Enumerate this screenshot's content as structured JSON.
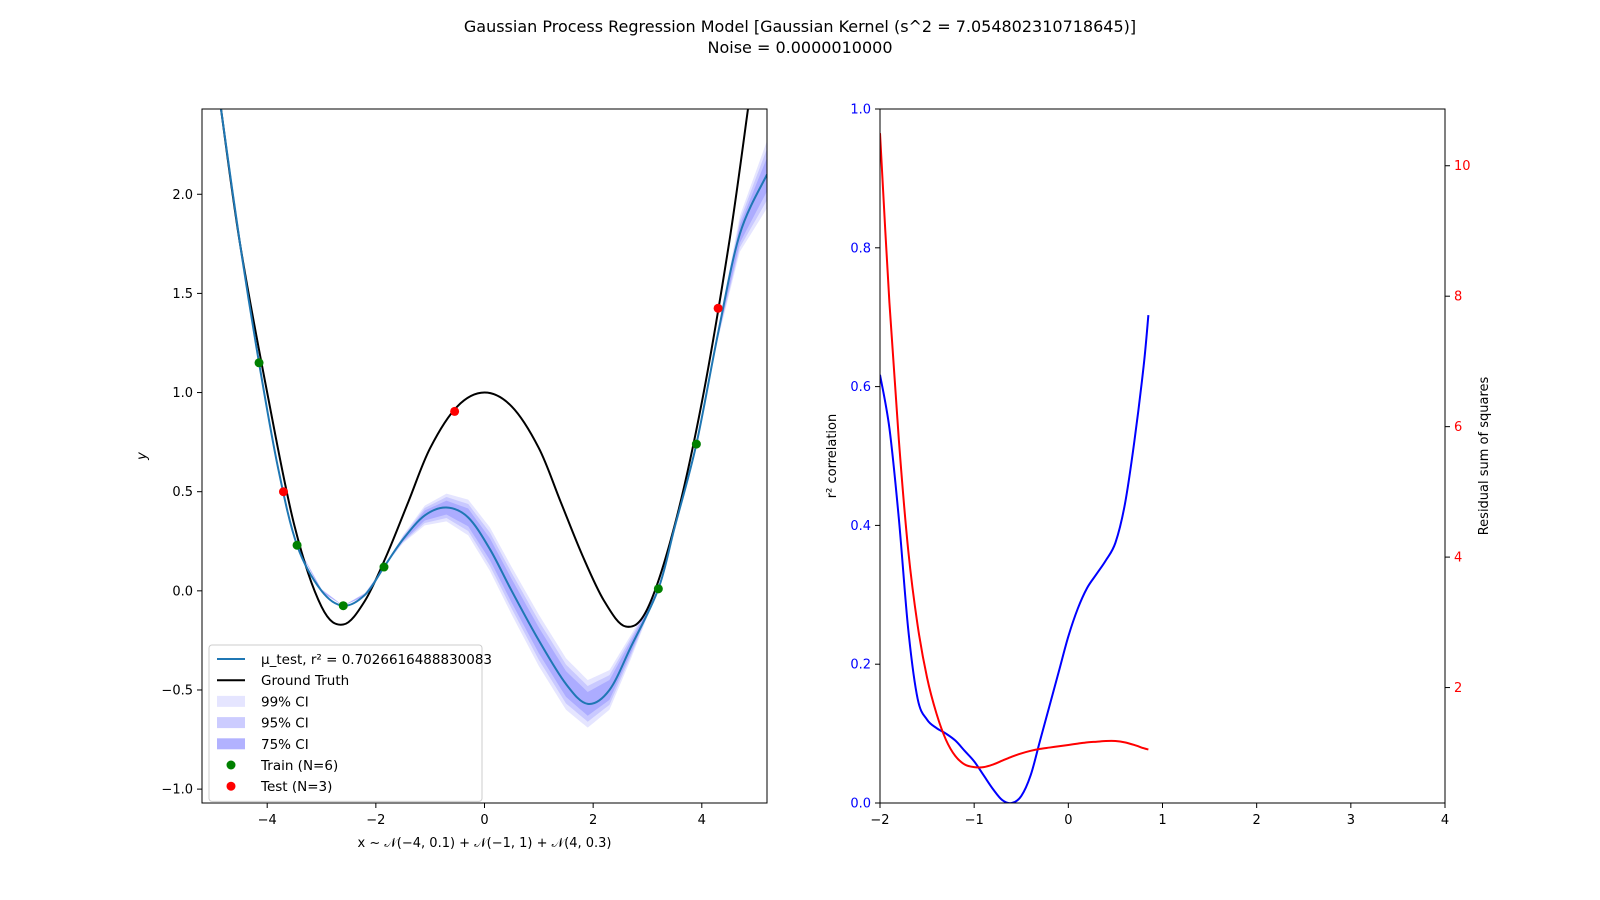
{
  "figure": {
    "title_line1": "Gaussian Process Regression Model [Gaussian Kernel (s^2 = 7.054802310718645)]",
    "title_line2": "Noise = 0.0000010000"
  },
  "chart_data": [
    {
      "type": "line",
      "xlabel": "x ~ 𝒩(−4, 0.1) + 𝒩(−1, 1) + 𝒩(4, 0.3)",
      "ylabel": "y",
      "xlim": [
        -5.2,
        5.2
      ],
      "ylim": [
        -1.07,
        2.43
      ],
      "xticks": [
        -4,
        -2,
        0,
        2,
        4
      ],
      "xtick_labels": [
        "−4",
        "−2",
        "0",
        "2",
        "4"
      ],
      "yticks": [
        -1.0,
        -0.5,
        0.0,
        0.5,
        1.0,
        1.5,
        2.0
      ],
      "ytick_labels": [
        "−1.0",
        "−0.5",
        "0.0",
        "0.5",
        "1.0",
        "1.5",
        "2.0"
      ],
      "legend_position": "lower-left",
      "legend": [
        {
          "kind": "line",
          "color": "#1f77b4",
          "label": "μ_test, r² = 0.7026616488830083"
        },
        {
          "kind": "line",
          "color": "#000000",
          "label": "Ground Truth"
        },
        {
          "kind": "patch",
          "color": "#0000ff",
          "opacity": 0.1,
          "label": "99% CI"
        },
        {
          "kind": "patch",
          "color": "#0000ff",
          "opacity": 0.2,
          "label": "95% CI"
        },
        {
          "kind": "patch",
          "color": "#0000ff",
          "opacity": 0.3,
          "label": "75% CI"
        },
        {
          "kind": "dot",
          "color": "#008000",
          "label": "Train (N=6)"
        },
        {
          "kind": "dot",
          "color": "#ff0000",
          "label": "Test (N=3)"
        }
      ],
      "ground_truth": {
        "color": "#000000",
        "points": [
          [
            -4.85,
            2.43
          ],
          [
            -4.5,
            1.75
          ],
          [
            -4.0,
            1.0
          ],
          [
            -3.5,
            0.33
          ],
          [
            -3.0,
            -0.08
          ],
          [
            -2.6,
            -0.17
          ],
          [
            -2.2,
            -0.05
          ],
          [
            -1.8,
            0.18
          ],
          [
            -1.4,
            0.45
          ],
          [
            -1.0,
            0.72
          ],
          [
            -0.5,
            0.93
          ],
          [
            0.0,
            1.0
          ],
          [
            0.5,
            0.93
          ],
          [
            1.0,
            0.72
          ],
          [
            1.4,
            0.45
          ],
          [
            1.8,
            0.18
          ],
          [
            2.2,
            -0.05
          ],
          [
            2.6,
            -0.18
          ],
          [
            3.0,
            -0.09
          ],
          [
            3.5,
            0.33
          ],
          [
            4.0,
            0.95
          ],
          [
            4.5,
            1.75
          ],
          [
            4.85,
            2.43
          ]
        ]
      },
      "mean": {
        "color": "#1f77b4",
        "points": [
          [
            -4.85,
            2.43
          ],
          [
            -4.5,
            1.75
          ],
          [
            -4.15,
            1.15
          ],
          [
            -3.8,
            0.62
          ],
          [
            -3.45,
            0.23
          ],
          [
            -3.0,
            0.0
          ],
          [
            -2.6,
            -0.075
          ],
          [
            -2.2,
            -0.02
          ],
          [
            -1.85,
            0.12
          ],
          [
            -1.5,
            0.26
          ],
          [
            -1.1,
            0.38
          ],
          [
            -0.7,
            0.42
          ],
          [
            -0.3,
            0.37
          ],
          [
            0.1,
            0.21
          ],
          [
            0.5,
            0.0
          ],
          [
            1.0,
            -0.25
          ],
          [
            1.5,
            -0.47
          ],
          [
            1.9,
            -0.57
          ],
          [
            2.3,
            -0.5
          ],
          [
            2.7,
            -0.28
          ],
          [
            3.2,
            0.01
          ],
          [
            3.5,
            0.32
          ],
          [
            3.9,
            0.74
          ],
          [
            4.3,
            1.3
          ],
          [
            4.7,
            1.8
          ],
          [
            5.2,
            2.1
          ]
        ]
      },
      "ci_half_width": {
        "x": [
          -5.2,
          -3.8,
          -3.45,
          -3.0,
          -2.6,
          -2.2,
          -1.85,
          -1.5,
          -1.1,
          -0.7,
          -0.3,
          0.1,
          0.5,
          1.0,
          1.5,
          1.9,
          2.3,
          2.7,
          3.2,
          3.5,
          3.9,
          4.3,
          4.7,
          5.2
        ],
        "w99": [
          0.0,
          0.0,
          0.0,
          0.01,
          0.0,
          0.01,
          0.0,
          0.02,
          0.05,
          0.07,
          0.09,
          0.11,
          0.12,
          0.13,
          0.13,
          0.12,
          0.1,
          0.06,
          0.0,
          0.02,
          0.0,
          0.03,
          0.09,
          0.17
        ],
        "w95": [
          0.0,
          0.0,
          0.0,
          0.008,
          0.0,
          0.008,
          0.0,
          0.015,
          0.038,
          0.053,
          0.068,
          0.084,
          0.09,
          0.098,
          0.098,
          0.09,
          0.075,
          0.045,
          0.0,
          0.015,
          0.0,
          0.023,
          0.068,
          0.13
        ],
        "w75": [
          0.0,
          0.0,
          0.0,
          0.005,
          0.0,
          0.005,
          0.0,
          0.01,
          0.025,
          0.035,
          0.045,
          0.055,
          0.06,
          0.065,
          0.065,
          0.06,
          0.05,
          0.03,
          0.0,
          0.01,
          0.0,
          0.015,
          0.045,
          0.085
        ]
      },
      "train": {
        "color": "#008000",
        "points": [
          [
            -4.15,
            1.15
          ],
          [
            -3.45,
            0.23
          ],
          [
            -2.6,
            -0.075
          ],
          [
            -1.85,
            0.12
          ],
          [
            3.2,
            0.01
          ],
          [
            3.9,
            0.74
          ]
        ]
      },
      "test": {
        "color": "#ff0000",
        "points": [
          [
            -3.7,
            0.5
          ],
          [
            -0.55,
            0.905
          ],
          [
            4.3,
            1.425
          ]
        ]
      }
    },
    {
      "type": "line",
      "xlabel": "",
      "ylabel_left": "r² correlation",
      "ylabel_right": "Residual sum of squares",
      "xlim": [
        -2,
        4
      ],
      "ylim_left": [
        0,
        1
      ],
      "ylim_right": [
        0.23,
        10.87
      ],
      "xticks": [
        -2,
        -1,
        0,
        1,
        2,
        3,
        4
      ],
      "xtick_labels": [
        "−2",
        "−1",
        "0",
        "1",
        "2",
        "3",
        "4"
      ],
      "yticks_left": [
        0.0,
        0.2,
        0.4,
        0.6,
        0.8,
        1.0
      ],
      "ytick_labels_left": [
        "0.0",
        "0.2",
        "0.4",
        "0.6",
        "0.8",
        "1.0"
      ],
      "yticks_right": [
        2,
        4,
        6,
        8,
        10
      ],
      "ytick_labels_right": [
        "2",
        "4",
        "6",
        "8",
        "10"
      ],
      "series": [
        {
          "axis": "left",
          "color": "#0000ff",
          "points": [
            [
              -2.0,
              0.617
            ],
            [
              -1.9,
              0.54
            ],
            [
              -1.8,
              0.41
            ],
            [
              -1.7,
              0.25
            ],
            [
              -1.6,
              0.15
            ],
            [
              -1.5,
              0.12
            ],
            [
              -1.4,
              0.108
            ],
            [
              -1.3,
              0.1
            ],
            [
              -1.2,
              0.09
            ],
            [
              -1.1,
              0.075
            ],
            [
              -1.0,
              0.06
            ],
            [
              -0.9,
              0.04
            ],
            [
              -0.8,
              0.02
            ],
            [
              -0.7,
              0.004
            ],
            [
              -0.6,
              0.0
            ],
            [
              -0.5,
              0.01
            ],
            [
              -0.4,
              0.04
            ],
            [
              -0.3,
              0.09
            ],
            [
              -0.2,
              0.14
            ],
            [
              -0.1,
              0.19
            ],
            [
              0.0,
              0.24
            ],
            [
              0.1,
              0.28
            ],
            [
              0.2,
              0.31
            ],
            [
              0.3,
              0.33
            ],
            [
              0.4,
              0.35
            ],
            [
              0.5,
              0.375
            ],
            [
              0.6,
              0.43
            ],
            [
              0.7,
              0.52
            ],
            [
              0.8,
              0.63
            ],
            [
              0.85,
              0.703
            ]
          ]
        },
        {
          "axis": "right",
          "color": "#ff0000",
          "points": [
            [
              -2.0,
              10.5
            ],
            [
              -1.9,
              7.9
            ],
            [
              -1.8,
              5.8
            ],
            [
              -1.7,
              4.1
            ],
            [
              -1.6,
              2.95
            ],
            [
              -1.5,
              2.15
            ],
            [
              -1.4,
              1.6
            ],
            [
              -1.3,
              1.2
            ],
            [
              -1.2,
              0.95
            ],
            [
              -1.1,
              0.82
            ],
            [
              -1.0,
              0.78
            ],
            [
              -0.9,
              0.78
            ],
            [
              -0.8,
              0.82
            ],
            [
              -0.7,
              0.88
            ],
            [
              -0.6,
              0.94
            ],
            [
              -0.5,
              0.99
            ],
            [
              -0.4,
              1.03
            ],
            [
              -0.3,
              1.06
            ],
            [
              -0.2,
              1.08
            ],
            [
              -0.1,
              1.1
            ],
            [
              0.0,
              1.12
            ],
            [
              0.1,
              1.14
            ],
            [
              0.2,
              1.16
            ],
            [
              0.3,
              1.17
            ],
            [
              0.4,
              1.18
            ],
            [
              0.5,
              1.18
            ],
            [
              0.6,
              1.16
            ],
            [
              0.7,
              1.12
            ],
            [
              0.8,
              1.07
            ],
            [
              0.85,
              1.05
            ]
          ]
        }
      ]
    }
  ]
}
